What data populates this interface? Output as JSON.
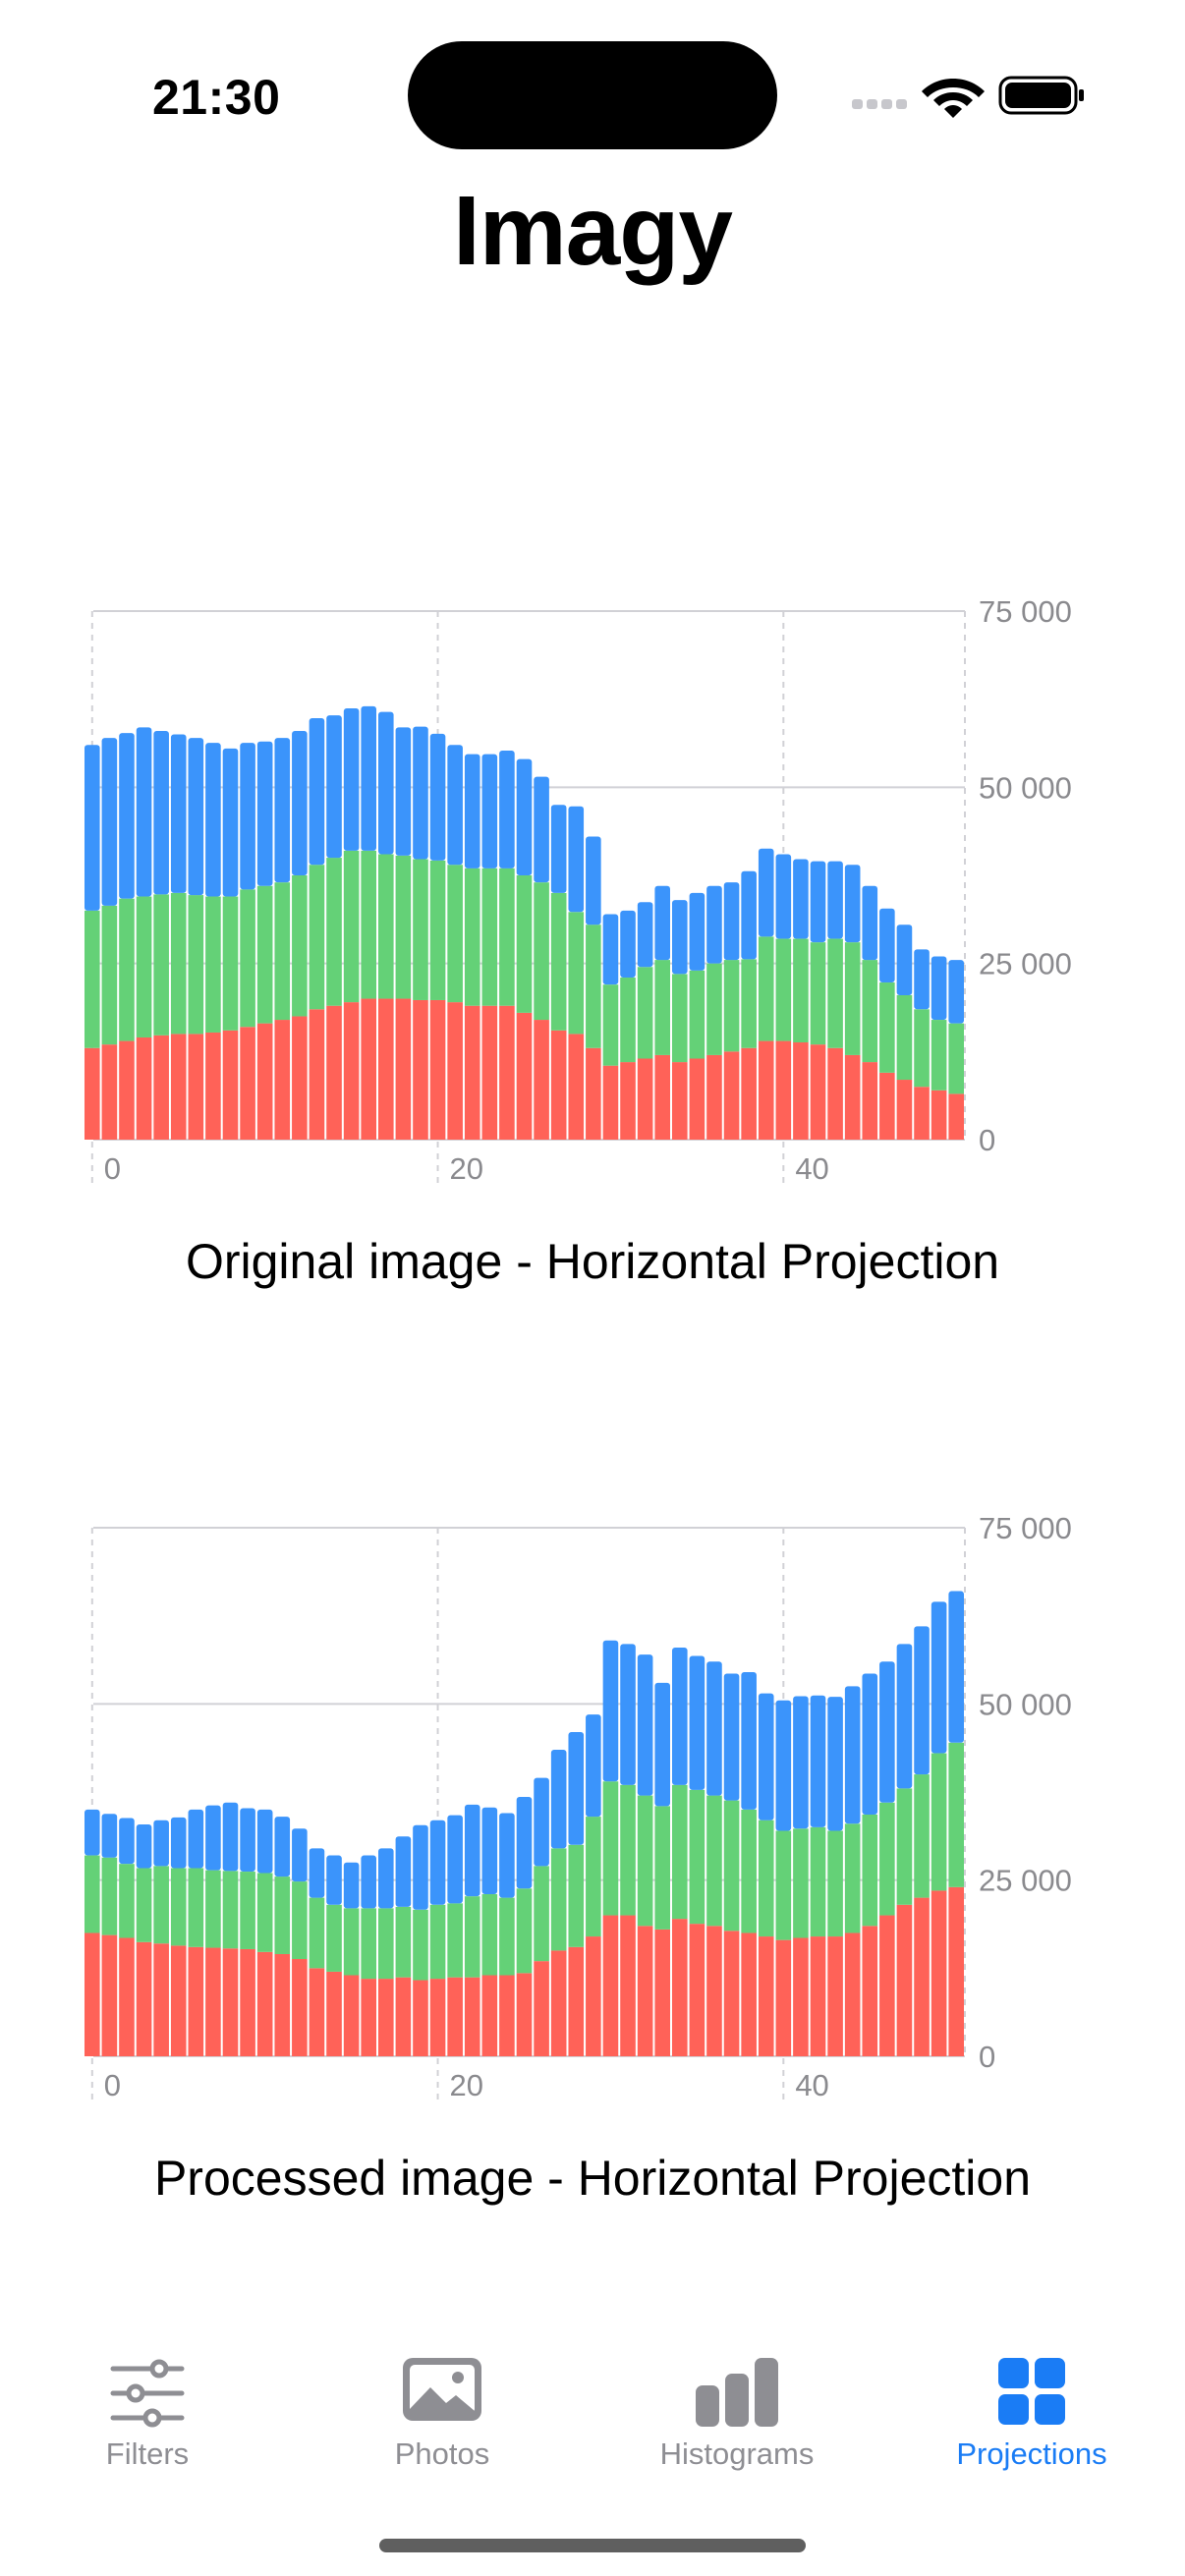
{
  "status_bar": {
    "time": "21:30"
  },
  "app": {
    "title": "Imagy"
  },
  "colors": {
    "red": "#ff6258",
    "green": "#64d177",
    "blue": "#3b94fb",
    "tab_active": "#1a7cf5",
    "tab_inactive": "#8e8e93",
    "grid": "#d1d1d6",
    "axis_text": "#8a8a8e"
  },
  "charts": {
    "original": {
      "title": "Original image - Horizontal Projection"
    },
    "processed": {
      "title": "Processed image - Horizontal Projection"
    }
  },
  "chart_data": [
    {
      "type": "bar",
      "stacked": true,
      "title": "Original image - Horizontal Projection",
      "x": [
        0,
        1,
        2,
        3,
        4,
        5,
        6,
        7,
        8,
        9,
        10,
        11,
        12,
        13,
        14,
        15,
        16,
        17,
        18,
        19,
        20,
        21,
        22,
        23,
        24,
        25,
        26,
        27,
        28,
        29,
        30,
        31,
        32,
        33,
        34,
        35,
        36,
        37,
        38,
        39,
        40,
        41,
        42,
        43,
        44,
        45,
        46,
        47,
        48,
        49,
        50
      ],
      "x_ticks": [
        "0",
        "20",
        "40"
      ],
      "y_ticks": [
        "0",
        "25 000",
        "50 000",
        "75 000"
      ],
      "ylim": [
        0,
        75000
      ],
      "xlim": [
        -0.5,
        50.5
      ],
      "grid": true,
      "series": [
        {
          "color": "red",
          "values": [
            13000,
            13500,
            14000,
            14500,
            14800,
            15000,
            15000,
            15200,
            15500,
            16000,
            16500,
            17000,
            17500,
            18500,
            19000,
            19500,
            20000,
            20000,
            20000,
            19800,
            19800,
            19500,
            19000,
            19000,
            19000,
            18000,
            17000,
            15500,
            15000,
            13000,
            10500,
            11000,
            11500,
            12000,
            11000,
            11500,
            12000,
            12500,
            13000,
            14000,
            14000,
            13800,
            13500,
            13000,
            12000,
            11000,
            9500,
            8500,
            7500,
            7000,
            6500
          ]
        },
        {
          "color": "green",
          "values": [
            19500,
            19700,
            20200,
            20000,
            20000,
            20000,
            19700,
            19300,
            19000,
            19500,
            19500,
            19500,
            20000,
            20500,
            21000,
            21500,
            21000,
            20500,
            20300,
            20000,
            19800,
            19500,
            19500,
            19500,
            19500,
            19500,
            19500,
            19500,
            17300,
            17500,
            11500,
            12000,
            13000,
            13500,
            12500,
            12500,
            13000,
            13000,
            12600,
            14800,
            14500,
            14700,
            14500,
            15500,
            16000,
            14500,
            12800,
            12000,
            11000,
            10000,
            10000
          ]
        },
        {
          "color": "blue",
          "values": [
            23500,
            23800,
            23500,
            24000,
            23200,
            22500,
            22300,
            21800,
            21000,
            20800,
            20500,
            20500,
            20500,
            20800,
            20200,
            20200,
            20500,
            20200,
            18200,
            18800,
            18000,
            17000,
            16200,
            16200,
            16700,
            16500,
            15000,
            12500,
            15000,
            12500,
            10000,
            9500,
            9200,
            10500,
            10500,
            11000,
            11000,
            11000,
            12500,
            12500,
            12000,
            11300,
            11500,
            11000,
            11000,
            10500,
            10500,
            10000,
            8500,
            9000,
            9000
          ]
        }
      ]
    },
    {
      "type": "bar",
      "stacked": true,
      "title": "Processed image - Horizontal Projection",
      "x": [
        0,
        1,
        2,
        3,
        4,
        5,
        6,
        7,
        8,
        9,
        10,
        11,
        12,
        13,
        14,
        15,
        16,
        17,
        18,
        19,
        20,
        21,
        22,
        23,
        24,
        25,
        26,
        27,
        28,
        29,
        30,
        31,
        32,
        33,
        34,
        35,
        36,
        37,
        38,
        39,
        40,
        41,
        42,
        43,
        44,
        45,
        46,
        47,
        48,
        49,
        50
      ],
      "x_ticks": [
        "0",
        "20",
        "40"
      ],
      "y_ticks": [
        "0",
        "25 000",
        "50 000",
        "75 000"
      ],
      "ylim": [
        0,
        75000
      ],
      "xlim": [
        -0.5,
        50.5
      ],
      "grid": true,
      "series": [
        {
          "color": "red",
          "values": [
            17500,
            17200,
            16800,
            16200,
            16000,
            15700,
            15500,
            15400,
            15300,
            15200,
            14800,
            14500,
            13800,
            12500,
            12000,
            11500,
            11000,
            11000,
            11200,
            10800,
            11000,
            11200,
            11200,
            11500,
            11500,
            11800,
            13500,
            15000,
            15500,
            17000,
            20000,
            20000,
            18500,
            18000,
            19500,
            18800,
            18500,
            17800,
            17500,
            17000,
            16500,
            16800,
            17000,
            17000,
            17500,
            18500,
            20000,
            21500,
            22500,
            23500,
            24000
          ]
        },
        {
          "color": "green",
          "values": [
            11000,
            11000,
            10500,
            10500,
            11000,
            11000,
            11200,
            11000,
            11000,
            11000,
            11200,
            11000,
            11000,
            10000,
            9500,
            9500,
            10000,
            10000,
            10000,
            10000,
            10500,
            10500,
            11500,
            11500,
            11000,
            12000,
            13500,
            14500,
            14500,
            17000,
            19000,
            18500,
            18500,
            17500,
            19000,
            19000,
            18500,
            18500,
            17500,
            16500,
            15500,
            15500,
            15500,
            15000,
            15500,
            15800,
            16000,
            16500,
            17500,
            19500,
            20500
          ]
        },
        {
          "color": "blue",
          "values": [
            6500,
            6200,
            6500,
            6200,
            6500,
            7200,
            8300,
            9200,
            9700,
            9000,
            9000,
            8500,
            7500,
            7000,
            7000,
            6500,
            7500,
            8500,
            10000,
            12000,
            12000,
            12500,
            13000,
            12300,
            12000,
            13000,
            12500,
            14000,
            16000,
            14500,
            20000,
            20000,
            20000,
            17500,
            19500,
            19000,
            19000,
            18000,
            19500,
            18000,
            18500,
            18800,
            18700,
            19000,
            19500,
            20000,
            20000,
            20500,
            21000,
            21500,
            21500
          ]
        }
      ]
    }
  ],
  "tabbar": {
    "tabs": [
      {
        "label": "Filters",
        "icon": "sliders-icon",
        "active": false
      },
      {
        "label": "Photos",
        "icon": "photo-icon",
        "active": false
      },
      {
        "label": "Histograms",
        "icon": "chart-bar-icon",
        "active": false
      },
      {
        "label": "Projections",
        "icon": "grid-icon",
        "active": true
      }
    ]
  }
}
